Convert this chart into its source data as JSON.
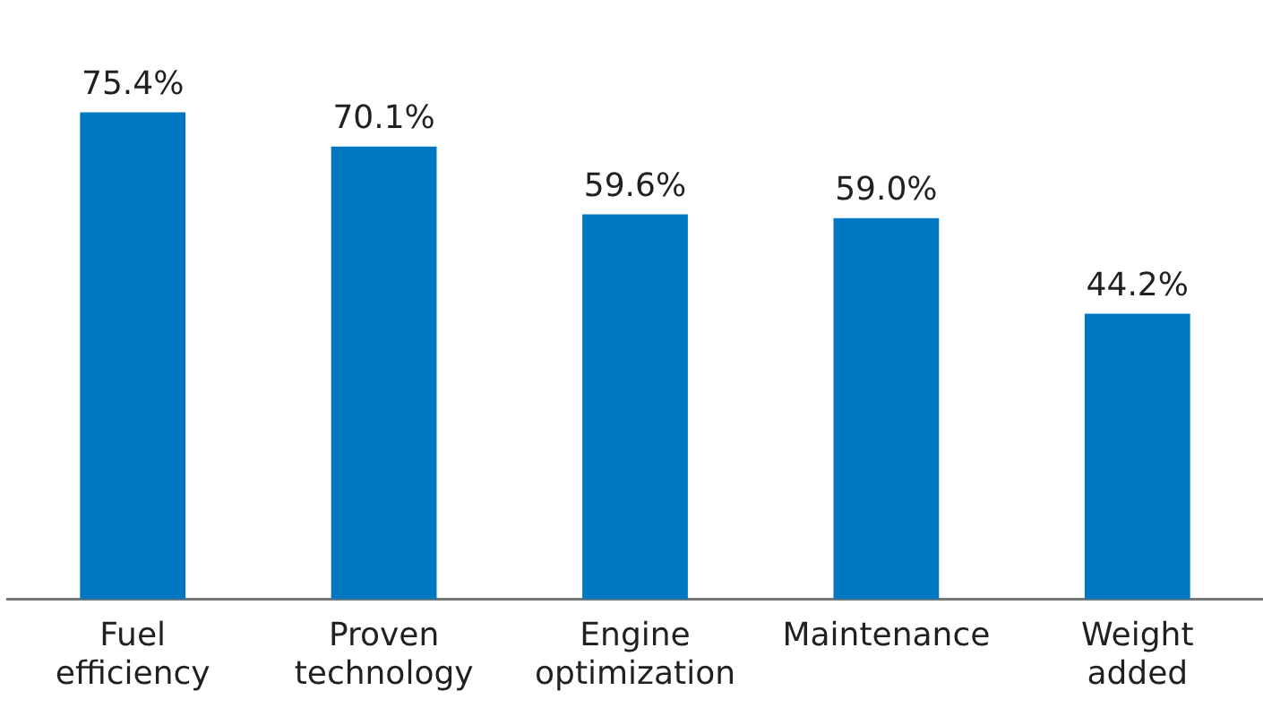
{
  "chart_data": {
    "type": "bar",
    "categories": [
      "Fuel efficiency",
      "Proven technology",
      "Engine optimization",
      "Maintenance",
      "Weight added"
    ],
    "values": [
      75.4,
      70.1,
      59.6,
      59.0,
      44.2
    ],
    "value_labels": [
      "75.4%",
      "70.1%",
      "59.6%",
      "59.0%",
      "44.2%"
    ],
    "color": "#0078c1",
    "grid": false,
    "legend": false
  }
}
